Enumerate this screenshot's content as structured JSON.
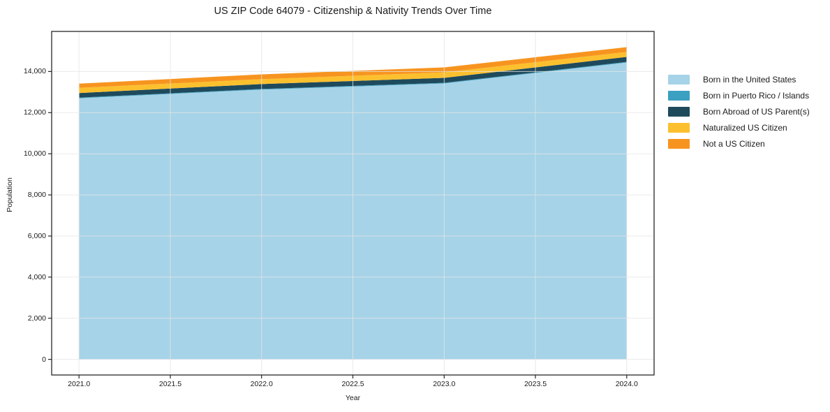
{
  "title": "US ZIP Code 64079 - Citizenship & Nativity Trends Over Time",
  "chart_data": {
    "type": "area",
    "stacked": true,
    "title": "US ZIP Code 64079 - Citizenship & Nativity Trends Over Time",
    "xlabel": "Year",
    "ylabel": "Population",
    "x": [
      2021,
      2022,
      2023,
      2024
    ],
    "series": [
      {
        "name": "Born in the United States",
        "color": "#a6d3e8",
        "values": [
          12700,
          13120,
          13420,
          14440
        ]
      },
      {
        "name": "Born in Puerto Rico / Islands",
        "color": "#3ba0c2",
        "values": [
          30,
          30,
          30,
          30
        ]
      },
      {
        "name": "Born Abroad of US Parent(s)",
        "color": "#1f4a5c",
        "values": [
          225,
          240,
          240,
          240
        ]
      },
      {
        "name": "Naturalized US Citizen",
        "color": "#fcc02e",
        "values": [
          250,
          240,
          270,
          240
        ]
      },
      {
        "name": "Not a US Citizen",
        "color": "#f7941f",
        "values": [
          205,
          230,
          240,
          235
        ]
      }
    ],
    "totals_estimated": [
      13410,
      13860,
      14200,
      15185
    ],
    "xlim": [
      2020.85,
      2024.15
    ],
    "ylim": [
      -760,
      15950
    ],
    "xticks": {
      "values": [
        2021,
        2021.5,
        2022,
        2022.5,
        2023,
        2023.5,
        2024
      ],
      "labels": [
        "2021.0",
        "2021.5",
        "2022.0",
        "2022.5",
        "2023.0",
        "2023.5",
        "2024.0"
      ]
    },
    "yticks": {
      "values": [
        0,
        2000,
        4000,
        6000,
        8000,
        10000,
        12000,
        14000
      ],
      "labels": [
        "0",
        "2,000",
        "4,000",
        "6,000",
        "8,000",
        "10,000",
        "12,000",
        "14,000"
      ]
    },
    "grid": true,
    "legend_position": "right-outside"
  },
  "colors": {
    "frame": "#262626",
    "grid": "#e5e5e5",
    "text": "#1a1a1a",
    "background": "#ffffff"
  }
}
